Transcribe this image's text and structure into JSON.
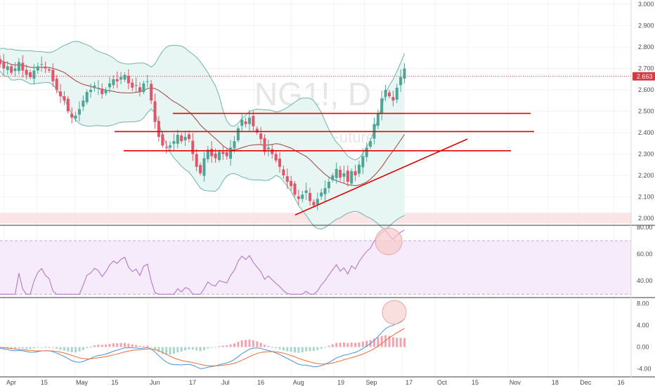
{
  "chart_data": {
    "type": "candlestick",
    "symbol": "NG1!, D",
    "description": "Natural Gas Futures",
    "colors": {
      "up": "#4da497",
      "down": "#e0556a",
      "trendline": "#e00000",
      "bb_fill": "#e8f6f3",
      "bb_line": "#6fb4a7",
      "bb_basis": "#a0403a",
      "rsi_line": "#b16dc7",
      "rsi_band": "#f5ebfb",
      "macd": "#4a90d9",
      "signal": "#ef6b3a",
      "support_zone": "#fbe4e6",
      "price_label": "#d23a44",
      "highlight": "#f6c9c9"
    },
    "price_axis": {
      "ylim": [
        1.97,
        3.02
      ],
      "ticks": [
        "3.000",
        "2.900",
        "2.800",
        "2.700",
        "2.600",
        "2.500",
        "2.400",
        "2.300",
        "2.200",
        "2.100",
        "2.000"
      ],
      "last_price": "2.663"
    },
    "rsi_axis": {
      "ylim": [
        28,
        81
      ],
      "ticks": [
        "80.00",
        "60.00",
        "40.00"
      ],
      "band": [
        30,
        70
      ]
    },
    "macd_axis": {
      "ylim": [
        -4.6,
        9.0
      ],
      "ticks": [
        "8.00",
        "4.00",
        "0.00",
        "-4.00"
      ]
    },
    "x_labels": [
      "Apr",
      "15",
      "May",
      "15",
      "Jun",
      "17",
      "Jul",
      "16",
      "Aug",
      "19",
      "Sep",
      "17",
      "Oct",
      "15",
      "Nov",
      "18",
      "Dec",
      "16"
    ],
    "support_zone": [
      1.975,
      2.025
    ],
    "horizontal_lines": [
      2.49,
      2.405,
      2.315
    ],
    "trendline": {
      "from": [
        "Aug 1",
        2.015
      ],
      "to": [
        "Oct 16",
        2.37
      ]
    },
    "ohlc_close_approx": [
      2.76,
      2.74,
      2.72,
      2.7,
      2.71,
      2.68,
      2.7,
      2.73,
      2.69,
      2.67,
      2.66,
      2.69,
      2.71,
      2.72,
      2.7,
      2.69,
      2.64,
      2.6,
      2.57,
      2.55,
      2.5,
      2.47,
      2.48,
      2.51,
      2.55,
      2.59,
      2.6,
      2.62,
      2.61,
      2.58,
      2.6,
      2.63,
      2.65,
      2.64,
      2.66,
      2.67,
      2.63,
      2.61,
      2.62,
      2.59,
      2.63,
      2.64,
      2.55,
      2.45,
      2.38,
      2.34,
      2.33,
      2.34,
      2.36,
      2.39,
      2.36,
      2.38,
      2.37,
      2.3,
      2.24,
      2.21,
      2.28,
      2.32,
      2.29,
      2.28,
      2.31,
      2.3,
      2.29,
      2.33,
      2.36,
      2.42,
      2.46,
      2.44,
      2.47,
      2.43,
      2.4,
      2.37,
      2.31,
      2.33,
      2.3,
      2.27,
      2.24,
      2.2,
      2.17,
      2.15,
      2.11,
      2.09,
      2.11,
      2.13,
      2.08,
      2.06,
      2.09,
      2.12,
      2.14,
      2.17,
      2.2,
      2.23,
      2.19,
      2.21,
      2.17,
      2.22,
      2.2,
      2.25,
      2.29,
      2.33,
      2.36,
      2.44,
      2.49,
      2.56,
      2.6,
      2.57,
      2.55,
      2.61,
      2.66,
      2.7
    ]
  }
}
